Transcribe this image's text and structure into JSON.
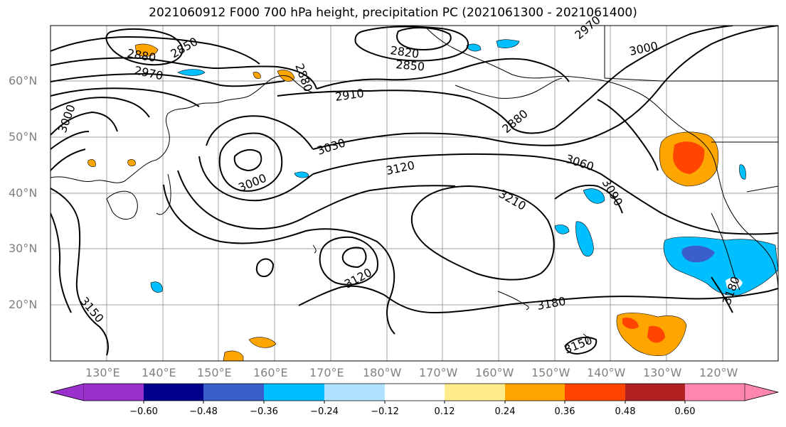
{
  "title": "2021060912 F000 700 hPa height, precipitation PC (2021061300 - 2021061400)",
  "latitude_labels": [
    "60°N",
    "50°N",
    "40°N",
    "30°N",
    "20°N"
  ],
  "longitude_labels": [
    "130°E",
    "140°E",
    "150°E",
    "160°E",
    "170°E",
    "180°W",
    "170°W",
    "160°W",
    "150°W",
    "140°W",
    "130°W",
    "120°W"
  ],
  "contour_labels": [
    "2880",
    "2850",
    "2970",
    "2880",
    "2820",
    "2850",
    "2910",
    "3000",
    "3030",
    "2880",
    "3000",
    "3120",
    "3060",
    "3090",
    "3210",
    "3120",
    "3180",
    "3150",
    "3150",
    "3000",
    "2970",
    "3180"
  ],
  "colorbar": {
    "tick_labels": [
      "−0.60",
      "−0.48",
      "−0.36",
      "−0.24",
      "−0.12",
      "0.12",
      "0.24",
      "0.36",
      "0.48",
      "0.60"
    ],
    "colors": [
      "#9932cc",
      "#00008b",
      "#3a5fcd",
      "#00bfff",
      "#b0e2ff",
      "#ffffff",
      "#ffec8b",
      "#ffa500",
      "#ff4500",
      "#b22222",
      "#ff86b0"
    ]
  },
  "map_data": {
    "projection": "PlateCarree",
    "lon_range": [
      120,
      250
    ],
    "lat_range": [
      10,
      70
    ],
    "gridlines": true,
    "variable_contours": "700 hPa height (m)",
    "variable_shading": "precipitation PC"
  }
}
